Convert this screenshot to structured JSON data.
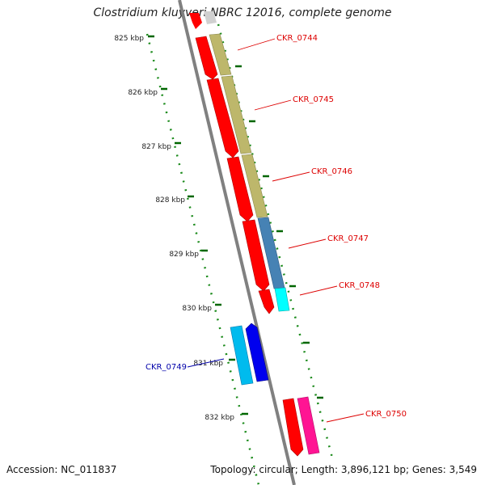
{
  "title": "Clostridium kluyveri NBRC 12016, complete genome",
  "footer": {
    "accession": "Accession: NC_011837",
    "summary": "Topology: circular; Length: 3,896,121 bp; Genes: 3,549"
  },
  "ticks": [
    "825 kbp",
    "826 kbp",
    "827 kbp",
    "828 kbp",
    "829 kbp",
    "830 kbp",
    "831 kbp",
    "832 kbp"
  ],
  "genes": [
    {
      "id": "CKR_0744",
      "label_color": "#dd0000"
    },
    {
      "id": "CKR_0745",
      "label_color": "#dd0000"
    },
    {
      "id": "CKR_0746",
      "label_color": "#dd0000"
    },
    {
      "id": "CKR_0747",
      "label_color": "#dd0000"
    },
    {
      "id": "CKR_0748",
      "label_color": "#dd0000"
    },
    {
      "id": "CKR_0749",
      "label_color": "#0000aa"
    },
    {
      "id": "CKR_0750",
      "label_color": "#dd0000"
    }
  ],
  "colors": {
    "forward_strand": "#ff0000",
    "reverse_strand": "#0000ee",
    "reverse_strand_light": "#00bbee",
    "cog_khaki": "#bdb76b",
    "cog_steelblue": "#4682b4",
    "cog_cyan": "#00ffff",
    "cog_pink": "#ff1493",
    "backbone": "#808080",
    "tick_green": "#006600"
  }
}
